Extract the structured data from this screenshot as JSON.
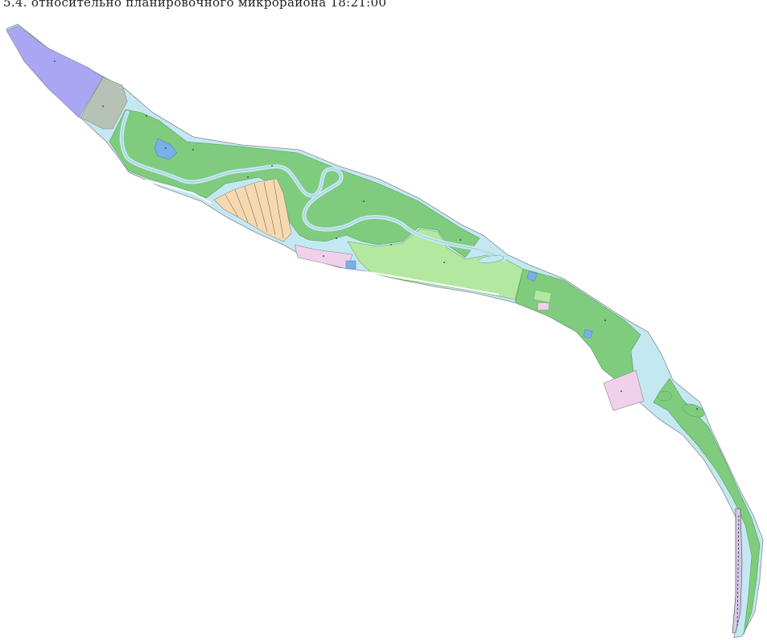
{
  "caption": "5.4. относительно планировочного микрорайона 18:21:00",
  "colors": {
    "water": "#c4e8f2",
    "forest": "#7fcc7f",
    "meadow": "#b3e8a0",
    "zone_violet": "#a9a6f4",
    "zone_grey": "#b6c2b6",
    "zone_pink": "#f0d0ea",
    "zone_blue": "#7ab0e8",
    "residential": "#f7d9b0",
    "border": "#777777"
  }
}
